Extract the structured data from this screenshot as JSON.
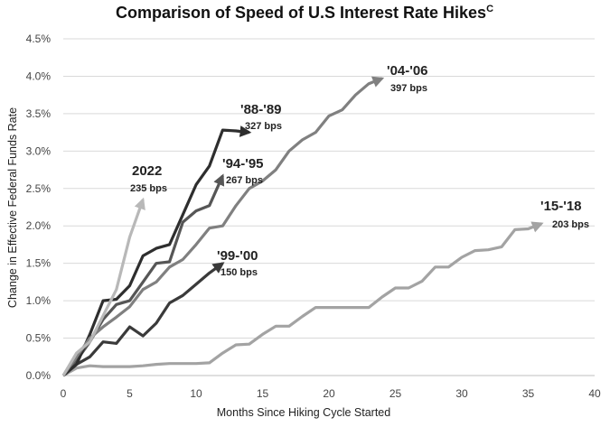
{
  "chart_data": {
    "type": "line",
    "title": "Comparison of Speed of U.S Interest Rate Hikes",
    "title_superscript": "C",
    "xlabel": "Months Since Hiking Cycle Started",
    "ylabel": "Change in Effective Federal Funds Rate",
    "xlim": [
      0,
      40
    ],
    "ylim": [
      0,
      4.5
    ],
    "x_ticks": [
      "0",
      "5",
      "10",
      "15",
      "20",
      "25",
      "30",
      "35",
      "40"
    ],
    "y_ticks": [
      "0.0%",
      "0.5%",
      "1.0%",
      "1.5%",
      "2.0%",
      "2.5%",
      "3.0%",
      "3.5%",
      "4.0%",
      "4.5%"
    ],
    "grid": true,
    "series": [
      {
        "name": "'15-'18",
        "bps": "203 bps",
        "color": "#a3a3a3",
        "x": [
          0,
          1,
          2,
          3,
          4,
          5,
          6,
          7,
          8,
          9,
          10,
          11,
          12,
          13,
          14,
          15,
          16,
          17,
          18,
          19,
          20,
          21,
          22,
          23,
          24,
          25,
          26,
          27,
          28,
          29,
          30,
          31,
          32,
          33,
          34,
          35,
          36
        ],
        "y": [
          0.0,
          0.1,
          0.13,
          0.12,
          0.12,
          0.12,
          0.13,
          0.15,
          0.16,
          0.16,
          0.16,
          0.17,
          0.3,
          0.41,
          0.42,
          0.55,
          0.66,
          0.66,
          0.79,
          0.91,
          0.91,
          0.91,
          0.91,
          0.91,
          1.05,
          1.17,
          1.17,
          1.26,
          1.45,
          1.45,
          1.58,
          1.67,
          1.68,
          1.72,
          1.95,
          1.96,
          2.03
        ]
      },
      {
        "name": "'99-'00",
        "bps": "150 bps",
        "color": "#3a3a3a",
        "x": [
          0,
          1,
          2,
          3,
          4,
          5,
          6,
          7,
          8,
          9,
          10,
          11,
          12
        ],
        "y": [
          0.0,
          0.15,
          0.25,
          0.45,
          0.43,
          0.65,
          0.53,
          0.7,
          0.97,
          1.07,
          1.22,
          1.37,
          1.5
        ]
      },
      {
        "name": "'94-'95",
        "bps": "267 bps",
        "color": "#565656",
        "x": [
          0,
          1,
          2,
          3,
          4,
          5,
          6,
          7,
          8,
          9,
          10,
          11,
          12
        ],
        "y": [
          0.0,
          0.2,
          0.45,
          0.75,
          0.95,
          1.0,
          1.25,
          1.5,
          1.52,
          2.05,
          2.2,
          2.27,
          2.67
        ]
      },
      {
        "name": "'88-'89",
        "bps": "327 bps",
        "color": "#2e2e2e",
        "x": [
          0,
          1,
          2,
          3,
          4,
          5,
          6,
          7,
          8,
          9,
          10,
          11,
          12,
          13,
          14
        ],
        "y": [
          0.0,
          0.15,
          0.55,
          1.0,
          1.02,
          1.2,
          1.6,
          1.7,
          1.75,
          2.15,
          2.55,
          2.8,
          3.28,
          3.27,
          3.25
        ]
      },
      {
        "name": "'04-'06",
        "bps": "397 bps",
        "color": "#808080",
        "x": [
          0,
          1,
          2,
          3,
          4,
          5,
          6,
          7,
          8,
          9,
          10,
          11,
          12,
          13,
          14,
          15,
          16,
          17,
          18,
          19,
          20,
          21,
          22,
          23,
          24
        ],
        "y": [
          0.0,
          0.25,
          0.5,
          0.65,
          0.78,
          0.92,
          1.15,
          1.25,
          1.45,
          1.55,
          1.75,
          1.97,
          2.0,
          2.27,
          2.5,
          2.6,
          2.75,
          3.0,
          3.15,
          3.25,
          3.47,
          3.55,
          3.75,
          3.9,
          3.97
        ]
      },
      {
        "name": "2022",
        "bps": "235 bps",
        "color": "#b8b8b8",
        "x": [
          0,
          1,
          2,
          3,
          4,
          5,
          6
        ],
        "y": [
          0.0,
          0.3,
          0.45,
          0.8,
          1.15,
          1.85,
          2.35
        ]
      }
    ]
  }
}
